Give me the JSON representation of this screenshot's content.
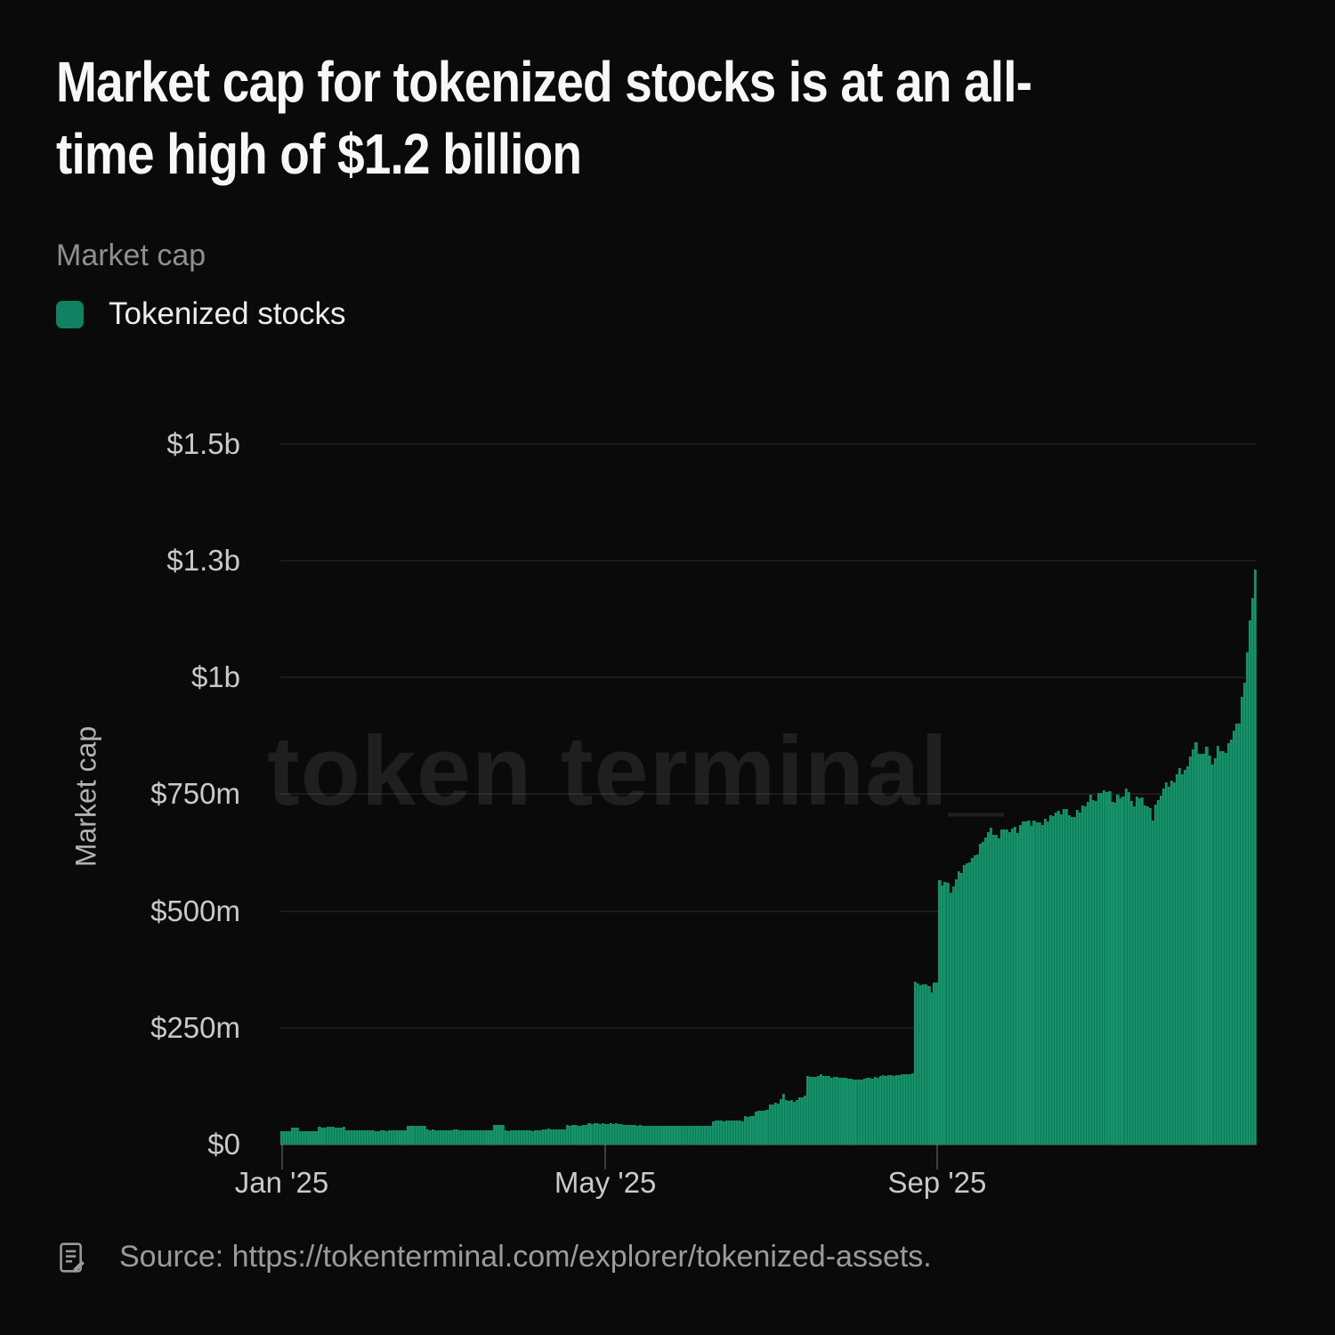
{
  "title_lines": [
    "Market cap for tokenized stocks is at an all-",
    "time high of $1.2 billion"
  ],
  "subtitle": "Market cap",
  "legend": {
    "label": "Tokenized stocks",
    "swatch_color": "#0f8261"
  },
  "watermark": "token terminal_",
  "source": {
    "icon": "note-icon",
    "text": "Source: https://tokenterminal.com/explorer/tokenized-assets."
  },
  "colors": {
    "background": "#0a0a0a",
    "bar": "#17926b",
    "bar_edge": "#0d7a55",
    "grid": "rgba(255,255,255,0.07)",
    "axis": "#3d3d3d",
    "title_text": "#f7f7f7",
    "muted_text": "#8f8f8f",
    "tick_label": "#c9c9c9"
  },
  "chart_data": {
    "type": "bar",
    "title": "Market cap",
    "series_name": "Tokenized stocks",
    "ylabel": "Market cap",
    "unit": "USD millions",
    "x_start": "2025-01-01",
    "x_end": "2025-12-28",
    "n_days": 362,
    "ylim": [
      0,
      1500
    ],
    "grid": "horizontal",
    "legend_position": "top-left",
    "yticks": [
      {
        "label": "$0",
        "value": 0
      },
      {
        "label": "$250m",
        "value": 250
      },
      {
        "label": "$500m",
        "value": 500
      },
      {
        "label": "$750m",
        "value": 750
      },
      {
        "label": "$1b",
        "value": 1000
      },
      {
        "label": "$1.3b",
        "value": 1250
      },
      {
        "label": "$1.5b",
        "value": 1500
      }
    ],
    "xticks": [
      {
        "label": "Jan '25",
        "day": 0
      },
      {
        "label": "May '25",
        "day": 120
      },
      {
        "label": "Sep '25",
        "day": 243
      }
    ],
    "keyframes": [
      {
        "d": 0,
        "v": 28
      },
      {
        "d": 3,
        "v": 28
      },
      {
        "d": 4,
        "v": 37
      },
      {
        "d": 6,
        "v": 37
      },
      {
        "d": 7,
        "v": 29
      },
      {
        "d": 13,
        "v": 29
      },
      {
        "d": 14,
        "v": 37
      },
      {
        "d": 23,
        "v": 37
      },
      {
        "d": 24,
        "v": 30
      },
      {
        "d": 46,
        "v": 30
      },
      {
        "d": 47,
        "v": 40
      },
      {
        "d": 53,
        "v": 40
      },
      {
        "d": 54,
        "v": 31
      },
      {
        "d": 78,
        "v": 31
      },
      {
        "d": 79,
        "v": 42
      },
      {
        "d": 82,
        "v": 42
      },
      {
        "d": 83,
        "v": 30
      },
      {
        "d": 96,
        "v": 30
      },
      {
        "d": 97,
        "v": 33
      },
      {
        "d": 105,
        "v": 33
      },
      {
        "d": 106,
        "v": 41
      },
      {
        "d": 113,
        "v": 41
      },
      {
        "d": 114,
        "v": 45
      },
      {
        "d": 125,
        "v": 45
      },
      {
        "d": 126,
        "v": 43
      },
      {
        "d": 136,
        "v": 40
      },
      {
        "d": 159,
        "v": 40
      },
      {
        "d": 160,
        "v": 51
      },
      {
        "d": 171,
        "v": 51
      },
      {
        "d": 172,
        "v": 60
      },
      {
        "d": 175,
        "v": 60
      },
      {
        "d": 176,
        "v": 71
      },
      {
        "d": 180,
        "v": 74
      },
      {
        "d": 181,
        "v": 86
      },
      {
        "d": 184,
        "v": 88
      },
      {
        "d": 185,
        "v": 97
      },
      {
        "d": 186,
        "v": 108
      },
      {
        "d": 187,
        "v": 95
      },
      {
        "d": 190,
        "v": 92
      },
      {
        "d": 193,
        "v": 103
      },
      {
        "d": 194,
        "v": 103
      },
      {
        "d": 195,
        "v": 145
      },
      {
        "d": 200,
        "v": 148
      },
      {
        "d": 209,
        "v": 142
      },
      {
        "d": 213,
        "v": 138
      },
      {
        "d": 217,
        "v": 141
      },
      {
        "d": 224,
        "v": 148
      },
      {
        "d": 231,
        "v": 150
      },
      {
        "d": 234,
        "v": 152
      },
      {
        "d": 235,
        "v": 345
      },
      {
        "d": 239,
        "v": 348
      },
      {
        "d": 241,
        "v": 330
      },
      {
        "d": 242,
        "v": 342
      },
      {
        "d": 243,
        "v": 348
      },
      {
        "d": 244,
        "v": 560
      },
      {
        "d": 246,
        "v": 565
      },
      {
        "d": 248,
        "v": 538
      },
      {
        "d": 250,
        "v": 570
      },
      {
        "d": 253,
        "v": 592
      },
      {
        "d": 257,
        "v": 622
      },
      {
        "d": 260,
        "v": 646
      },
      {
        "d": 263,
        "v": 675
      },
      {
        "d": 266,
        "v": 662
      },
      {
        "d": 269,
        "v": 681
      },
      {
        "d": 273,
        "v": 672
      },
      {
        "d": 277,
        "v": 695
      },
      {
        "d": 281,
        "v": 681
      },
      {
        "d": 285,
        "v": 700
      },
      {
        "d": 289,
        "v": 711
      },
      {
        "d": 293,
        "v": 705
      },
      {
        "d": 297,
        "v": 726
      },
      {
        "d": 301,
        "v": 741
      },
      {
        "d": 305,
        "v": 756
      },
      {
        "d": 309,
        "v": 736
      },
      {
        "d": 313,
        "v": 756
      },
      {
        "d": 316,
        "v": 731
      },
      {
        "d": 319,
        "v": 746
      },
      {
        "d": 321,
        "v": 717
      },
      {
        "d": 323,
        "v": 701
      },
      {
        "d": 325,
        "v": 736
      },
      {
        "d": 328,
        "v": 771
      },
      {
        "d": 332,
        "v": 791
      },
      {
        "d": 335,
        "v": 801
      },
      {
        "d": 337,
        "v": 831
      },
      {
        "d": 339,
        "v": 851
      },
      {
        "d": 341,
        "v": 826
      },
      {
        "d": 343,
        "v": 841
      },
      {
        "d": 345,
        "v": 821
      },
      {
        "d": 347,
        "v": 856
      },
      {
        "d": 349,
        "v": 836
      },
      {
        "d": 351,
        "v": 866
      },
      {
        "d": 353,
        "v": 881
      },
      {
        "d": 355,
        "v": 911
      },
      {
        "d": 356,
        "v": 951
      },
      {
        "d": 357,
        "v": 1001
      },
      {
        "d": 358,
        "v": 1056
      },
      {
        "d": 359,
        "v": 1121
      },
      {
        "d": 360,
        "v": 1171
      },
      {
        "d": 361,
        "v": 1226
      }
    ]
  }
}
